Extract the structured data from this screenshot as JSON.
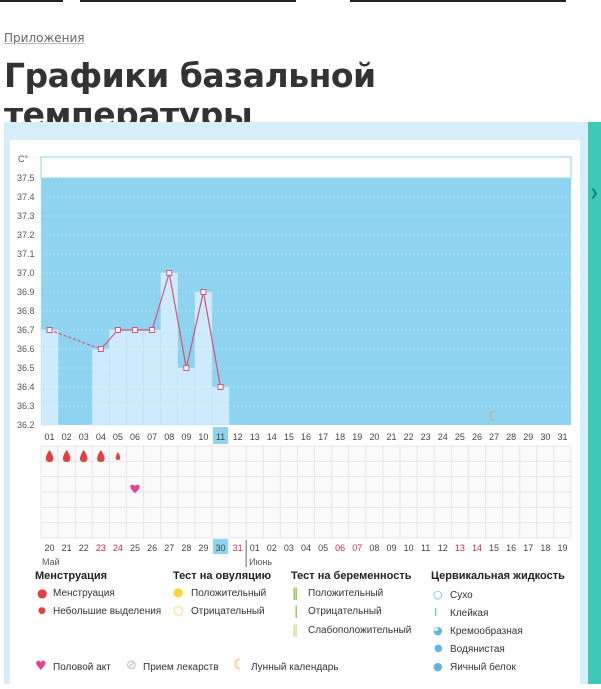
{
  "breadcrumb": "Приложения",
  "page_title": "Графики базальной температуры",
  "chart_data": {
    "type": "line",
    "ylabel": "C°",
    "ylim": [
      36.2,
      37.5
    ],
    "yticks": [
      "37.5",
      "37.4",
      "37.3",
      "37.2",
      "37.1",
      "37.0",
      "36.9",
      "36.8",
      "36.7",
      "36.6",
      "36.5",
      "36.4",
      "36.3",
      "36.2"
    ],
    "cycle_days": [
      "01",
      "02",
      "03",
      "04",
      "05",
      "06",
      "07",
      "08",
      "09",
      "10",
      "11",
      "12",
      "13",
      "14",
      "15",
      "16",
      "17",
      "18",
      "19",
      "20",
      "21",
      "22",
      "23",
      "24",
      "25",
      "26",
      "27",
      "28",
      "29",
      "30",
      "31"
    ],
    "highlight_day": "11",
    "temperatures": [
      36.7,
      null,
      null,
      36.6,
      36.7,
      36.7,
      36.7,
      37.0,
      36.5,
      36.9,
      36.4,
      null,
      null,
      null,
      null,
      null,
      null,
      null,
      null,
      null,
      null,
      null,
      null,
      null,
      null,
      null,
      null,
      null,
      null,
      null,
      null
    ],
    "dashed_gap": [
      1,
      4
    ],
    "menstruation_days": [
      1,
      2,
      3,
      4
    ],
    "light_discharge_days": [
      5
    ],
    "intercourse_days": [
      6
    ],
    "lunar_days": [
      27
    ],
    "calendar_dates": [
      "20",
      "21",
      "22",
      "23",
      "24",
      "25",
      "26",
      "27",
      "28",
      "29",
      "30",
      "31",
      "01",
      "02",
      "03",
      "04",
      "05",
      "06",
      "07",
      "08",
      "09",
      "10",
      "11",
      "12",
      "13",
      "14",
      "15",
      "16",
      "17",
      "18",
      "19"
    ],
    "red_dates": [
      3,
      4,
      11,
      17,
      18,
      24,
      25
    ],
    "highlight_date": 10,
    "month_start": "Май",
    "month_next": "Июнь",
    "month_next_index": 12
  },
  "legend": {
    "menstruation": {
      "title": "Менструация",
      "items": [
        "Менструация",
        "Небольшие выделения"
      ]
    },
    "ovulation": {
      "title": "Тест на овуляцию",
      "items": [
        "Положительный",
        "Отрицательный"
      ]
    },
    "pregnancy": {
      "title": "Тест на беременность",
      "items": [
        "Положительный",
        "Отрицательный",
        "Слабоположительный"
      ]
    },
    "cervical": {
      "title": "Цервикальная жидкость",
      "items": [
        "Сухо",
        "Клейкая",
        "Кремообразная",
        "Водянистая",
        "Яичный белок"
      ]
    },
    "bottom": [
      "Половой акт",
      "Прием лекарств",
      "Лунный календарь"
    ]
  },
  "colors": {
    "chart_bg": "#8ed3ef",
    "bar": "#cdebfa",
    "line": "#d0557a",
    "menstruation": "#e0413e",
    "heart": "#ee3f97",
    "ovulation_pos": "#ffd23a",
    "moon": "#f0a23a",
    "pregnancy": "#8cc63e",
    "cervical": "#5db8e5",
    "accent": "#3ec9b6"
  }
}
